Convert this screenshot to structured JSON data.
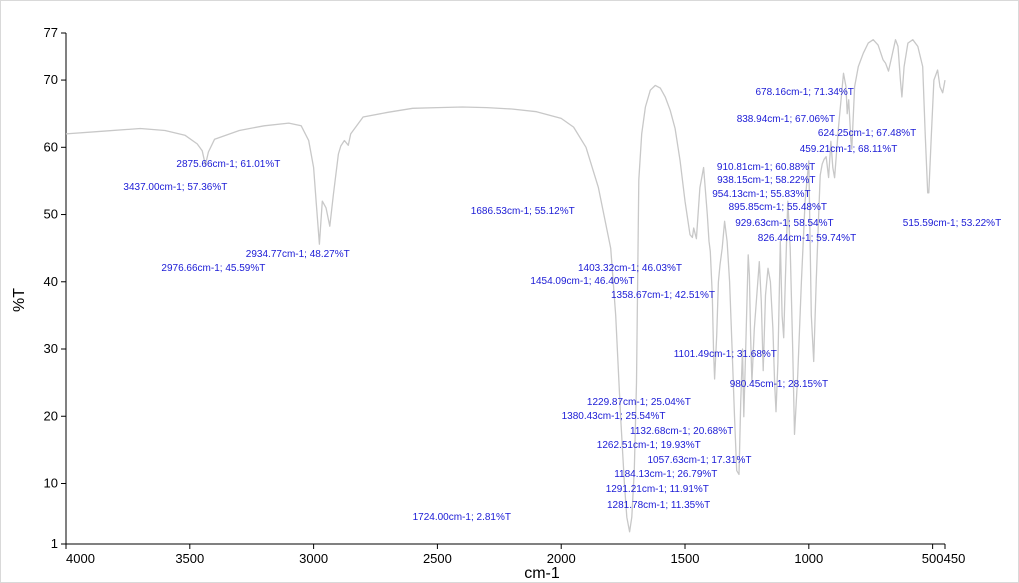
{
  "chart_data": {
    "type": "line",
    "title": "",
    "xlabel": "cm-1",
    "ylabel": "%T",
    "xlim": [
      4000,
      450
    ],
    "ylim": [
      1,
      77
    ],
    "x_reversed": true,
    "grid": false,
    "x_ticks": [
      "4000",
      "3500",
      "3000",
      "2500",
      "2000",
      "1500",
      "1000",
      "500",
      "450"
    ],
    "y_ticks": [
      "77",
      "70",
      "60",
      "50",
      "40",
      "30",
      "20",
      "10",
      "1"
    ],
    "line_color": "#c8c8c8",
    "label_color": "#1b1bd6",
    "series": [
      {
        "x": [
          4000,
          3850,
          3700,
          3600,
          3520,
          3470,
          3450,
          3437,
          3425,
          3400,
          3300,
          3200,
          3100,
          3050,
          3020,
          3000,
          2990,
          2976.66,
          2965,
          2950,
          2934.77,
          2920,
          2900,
          2890,
          2875.66,
          2860,
          2850,
          2800,
          2700,
          2600,
          2500,
          2400,
          2300,
          2200,
          2100,
          2000,
          1950,
          1900,
          1850,
          1800,
          1780,
          1760,
          1745,
          1735,
          1724,
          1715,
          1705,
          1696,
          1686.53,
          1675,
          1660,
          1640,
          1620,
          1600,
          1580,
          1560,
          1540,
          1520,
          1500,
          1480,
          1470,
          1465,
          1454.09,
          1440,
          1425,
          1410,
          1403.32,
          1398,
          1390,
          1385,
          1380.43,
          1372,
          1365,
          1358.67,
          1350,
          1340,
          1330,
          1320,
          1310,
          1300,
          1291.21,
          1281.78,
          1275,
          1268,
          1262.51,
          1255,
          1245,
          1240,
          1235,
          1229.87,
          1220,
          1210,
          1200,
          1192,
          1184.13,
          1175,
          1165,
          1155,
          1145,
          1138,
          1132.68,
          1125,
          1115,
          1108,
          1101.49,
          1095,
          1085,
          1075,
          1065,
          1057.63,
          1045,
          1030,
          1015,
          1000,
          990,
          980.45,
          970,
          960,
          954.13,
          946,
          938.15,
          930,
          929.63,
          920,
          910.81,
          903,
          895.85,
          880,
          870,
          860,
          850,
          845,
          838.94,
          830,
          826.44,
          815,
          800,
          780,
          760,
          740,
          720,
          700,
          690,
          678.16,
          665,
          650,
          640,
          630,
          624.25,
          615,
          600,
          580,
          560,
          540,
          530,
          520,
          515.59,
          505,
          495,
          480,
          470,
          459.21,
          455,
          450
        ],
        "y": [
          62,
          62.4,
          62.8,
          62.5,
          61.8,
          60.5,
          59.5,
          57.36,
          59.3,
          61.2,
          62.5,
          63.2,
          63.6,
          63.2,
          61,
          57,
          52,
          45.59,
          52,
          51,
          48.27,
          53,
          59,
          60.2,
          61.01,
          60.3,
          62,
          64.5,
          65.2,
          65.8,
          65.9,
          66,
          65.9,
          65.7,
          65.3,
          64.3,
          63,
          60,
          54,
          45,
          35,
          20,
          10,
          5,
          2.81,
          5,
          12,
          25,
          55.12,
          62,
          66,
          68.5,
          69.2,
          68.8,
          67.5,
          65.5,
          62.8,
          58,
          52,
          47,
          46.6,
          48,
          46.4,
          54,
          57,
          50,
          46.03,
          44.5,
          38,
          30,
          25.54,
          32,
          40,
          42.51,
          45,
          49,
          46,
          40,
          30,
          20,
          11.91,
          11.35,
          22,
          30,
          19.93,
          30,
          44,
          41,
          32,
          25.04,
          33,
          38,
          43,
          37,
          26.79,
          38,
          42,
          40,
          33,
          25,
          20.68,
          28,
          46,
          35,
          31.68,
          40,
          52,
          45,
          30,
          17.31,
          26,
          40,
          52,
          58,
          35,
          28.15,
          40,
          50,
          55.83,
          57.5,
          58.22,
          58.6,
          58.54,
          55.5,
          60.88,
          57,
          55.48,
          63,
          67,
          71,
          69,
          65,
          67.06,
          61,
          59.74,
          69,
          72,
          74,
          75.5,
          76,
          75.2,
          73,
          72.5,
          71.34,
          73.5,
          76,
          75,
          70,
          67.48,
          72,
          75.5,
          76,
          75,
          72,
          62,
          53.22,
          53.22,
          62,
          70,
          71.5,
          69,
          68.11,
          69,
          70
        ],
        "color": "#c8c8c8"
      }
    ],
    "annotations": [
      {
        "x": 3437.0,
        "text": "3437.00cm-1; 57.36%T"
      },
      {
        "x": 2875.66,
        "text": "2875.66cm-1; 61.01%T"
      },
      {
        "x": 2934.77,
        "text": "2934.77cm-1; 48.27%T"
      },
      {
        "x": 2976.66,
        "text": "2976.66cm-1; 45.59%T"
      },
      {
        "x": 1686.53,
        "text": "1686.53cm-1; 55.12%T"
      },
      {
        "x": 1724.0,
        "text": "1724.00cm-1; 2.81%T"
      },
      {
        "x": 1403.32,
        "text": "1403.32cm-1; 46.03%T"
      },
      {
        "x": 1454.09,
        "text": "1454.09cm-1; 46.40%T"
      },
      {
        "x": 1358.67,
        "text": "1358.67cm-1; 42.51%T"
      },
      {
        "x": 1101.49,
        "text": "1101.49cm-1; 31.68%T"
      },
      {
        "x": 980.45,
        "text": "980.45cm-1; 28.15%T"
      },
      {
        "x": 1229.87,
        "text": "1229.87cm-1; 25.04%T"
      },
      {
        "x": 1380.43,
        "text": "1380.43cm-1; 25.54%T"
      },
      {
        "x": 1132.68,
        "text": "1132.68cm-1; 20.68%T"
      },
      {
        "x": 1262.51,
        "text": "1262.51cm-1; 19.93%T"
      },
      {
        "x": 1057.63,
        "text": "1057.63cm-1; 17.31%T"
      },
      {
        "x": 1184.13,
        "text": "1184.13cm-1; 26.79%T"
      },
      {
        "x": 1291.21,
        "text": "1291.21cm-1; 11.91%T"
      },
      {
        "x": 1281.78,
        "text": "1281.78cm-1; 11.35%T"
      },
      {
        "x": 678.16,
        "text": "678.16cm-1; 71.34%T"
      },
      {
        "x": 838.94,
        "text": "838.94cm-1; 67.06%T"
      },
      {
        "x": 624.25,
        "text": "624.25cm-1; 67.48%T"
      },
      {
        "x": 459.21,
        "text": "459.21cm-1; 68.11%T"
      },
      {
        "x": 910.81,
        "text": "910.81cm-1; 60.88%T"
      },
      {
        "x": 938.15,
        "text": "938.15cm-1; 58.22%T"
      },
      {
        "x": 954.13,
        "text": "954.13cm-1; 55.83%T"
      },
      {
        "x": 895.85,
        "text": "895.85cm-1; 55.48%T"
      },
      {
        "x": 929.63,
        "text": "929.63cm-1; 58.54%T"
      },
      {
        "x": 515.59,
        "text": "515.59cm-1; 53.22%T"
      },
      {
        "x": 826.44,
        "text": "826.44cm-1; 59.74%T"
      }
    ]
  }
}
